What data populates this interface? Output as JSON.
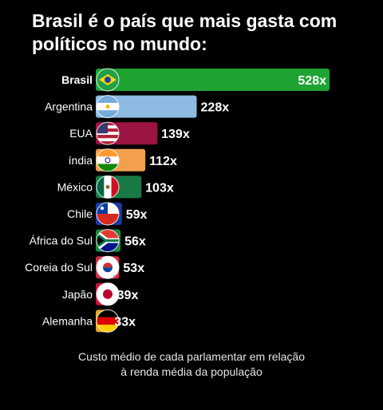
{
  "title": "Brasil é o país que mais gasta com políticos no mundo:",
  "caption_line1": "Custo médio de cada parlamentar em relação",
  "caption_line2": "à renda média da população",
  "chart_data": {
    "type": "bar",
    "orientation": "horizontal",
    "title": "Brasil é o país que mais gasta com políticos no mundo:",
    "categories": [
      "Brasil",
      "Argentina",
      "EUA",
      "índia",
      "México",
      "Chile",
      "África do Sul",
      "Coreia do Sul",
      "Japão",
      "Alemanha"
    ],
    "values": [
      528,
      228,
      139,
      112,
      103,
      59,
      56,
      53,
      39,
      33
    ],
    "value_labels": [
      "528x",
      "228x",
      "139x",
      "112x",
      "103x",
      "59x",
      "56x",
      "53x",
      "39x",
      "33x"
    ],
    "bar_colors": [
      "#1fa333",
      "#8dbbe2",
      "#9b1442",
      "#f2a04e",
      "#1a7a45",
      "#1b3aa6",
      "#1f8a44",
      "#cc2f43",
      "#cc1133",
      "#e8a928"
    ],
    "flags": [
      "brazil-flag",
      "argentina-flag",
      "usa-flag",
      "india-flag",
      "mexico-flag",
      "chile-flag",
      "south-africa-flag",
      "south-korea-flag",
      "japan-flag",
      "germany-flag"
    ],
    "highlight": "Brasil",
    "grid": false,
    "legend": "none"
  }
}
